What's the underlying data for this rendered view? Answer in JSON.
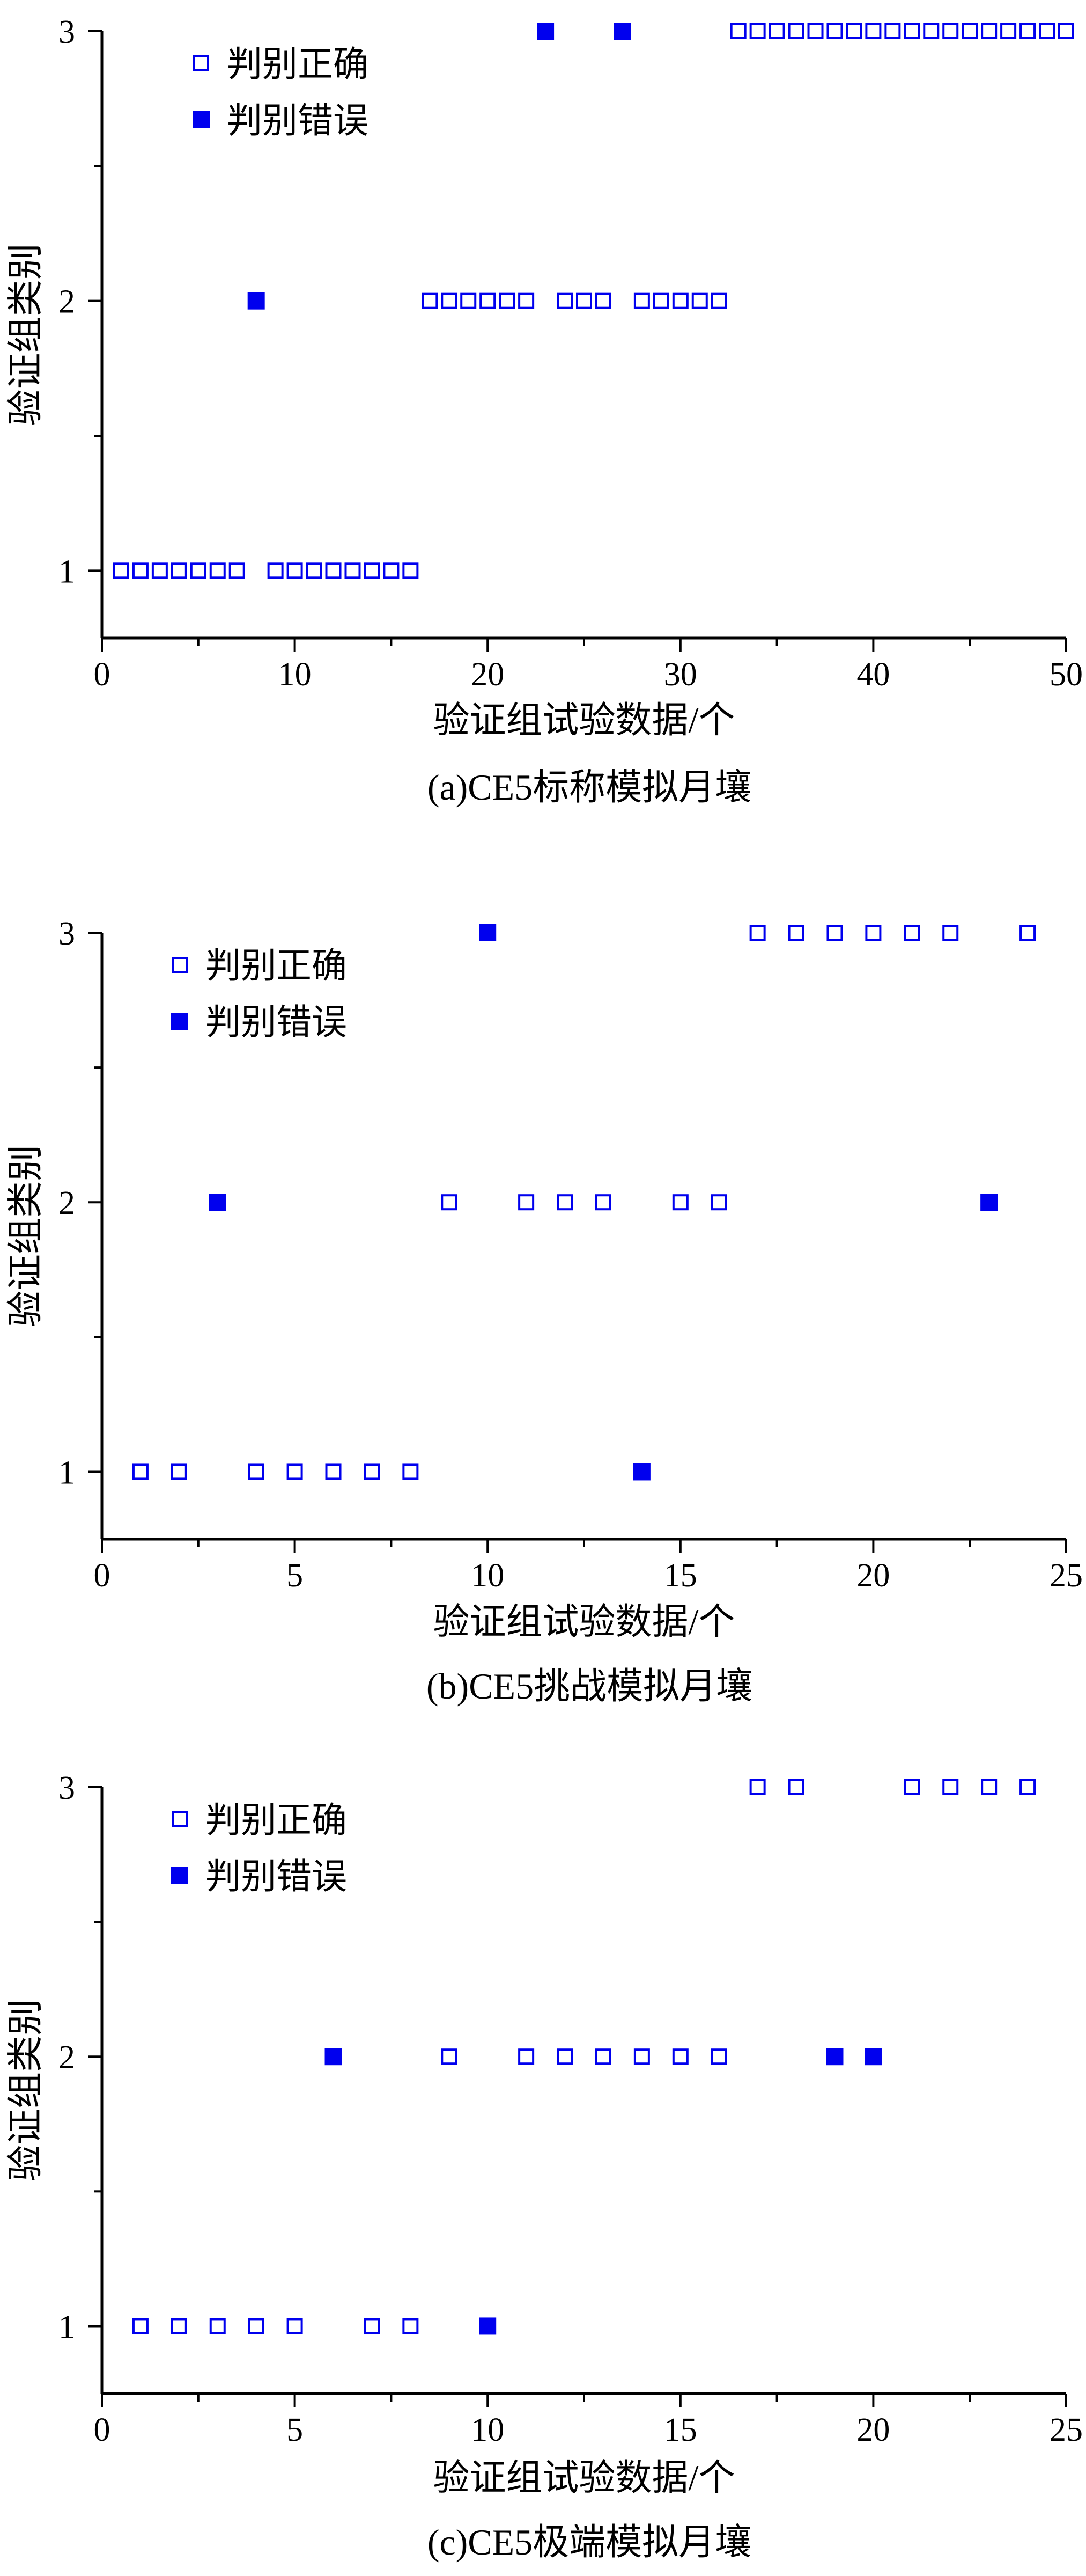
{
  "colors": {
    "marker": "#0000ee",
    "axis": "#000000"
  },
  "chart_data": [
    {
      "type": "scatter",
      "caption": "(a)CE5标称模拟月壤",
      "xlabel": "验证组试验数据/个",
      "ylabel": "验证组类别",
      "xlim": [
        0,
        50
      ],
      "ylim": [
        0.75,
        3.0
      ],
      "xticks": [
        0,
        10,
        20,
        30,
        40,
        50
      ],
      "yticks": [
        1,
        2,
        3
      ],
      "legend_position": "top-left",
      "series": [
        {
          "name": "判别正确",
          "marker": "hollow-square",
          "x": [
            1,
            2,
            3,
            4,
            5,
            6,
            7,
            9,
            10,
            11,
            12,
            13,
            14,
            15,
            16,
            17,
            18,
            19,
            20,
            21,
            22,
            24,
            25,
            26,
            28,
            29,
            30,
            31,
            32,
            33,
            34,
            35,
            36,
            37,
            38,
            39,
            40,
            41,
            42,
            43,
            44,
            45,
            46,
            47,
            48,
            49,
            50
          ],
          "y": [
            1,
            1,
            1,
            1,
            1,
            1,
            1,
            1,
            1,
            1,
            1,
            1,
            1,
            1,
            1,
            2,
            2,
            2,
            2,
            2,
            2,
            2,
            2,
            2,
            2,
            2,
            2,
            2,
            2,
            3,
            3,
            3,
            3,
            3,
            3,
            3,
            3,
            3,
            3,
            3,
            3,
            3,
            3,
            3,
            3,
            3,
            3
          ]
        },
        {
          "name": "判别错误",
          "marker": "filled-square",
          "x": [
            8,
            23,
            27
          ],
          "y": [
            2,
            3,
            3
          ]
        }
      ]
    },
    {
      "type": "scatter",
      "caption": "(b)CE5挑战模拟月壤",
      "xlabel": "验证组试验数据/个",
      "ylabel": "验证组类别",
      "xlim": [
        0,
        25
      ],
      "ylim": [
        0.75,
        3.0
      ],
      "xticks": [
        0,
        5,
        10,
        15,
        20,
        25
      ],
      "yticks": [
        1,
        2,
        3
      ],
      "legend_position": "top-left",
      "series": [
        {
          "name": "判别正确",
          "marker": "hollow-square",
          "x": [
            1,
            2,
            4,
            5,
            6,
            7,
            8,
            9,
            11,
            12,
            13,
            15,
            16,
            17,
            18,
            19,
            20,
            21,
            22,
            24
          ],
          "y": [
            1,
            1,
            1,
            1,
            1,
            1,
            1,
            2,
            2,
            2,
            2,
            2,
            2,
            3,
            3,
            3,
            3,
            3,
            3,
            3
          ]
        },
        {
          "name": "判别错误",
          "marker": "filled-square",
          "x": [
            3,
            10,
            14,
            23
          ],
          "y": [
            2,
            3,
            1,
            2
          ]
        }
      ]
    },
    {
      "type": "scatter",
      "caption": "(c)CE5极端模拟月壤",
      "xlabel": "验证组试验数据/个",
      "ylabel": "验证组类别",
      "xlim": [
        0,
        25
      ],
      "ylim": [
        0.75,
        3.0
      ],
      "xticks": [
        0,
        5,
        10,
        15,
        20,
        25
      ],
      "yticks": [
        1,
        2,
        3
      ],
      "legend_position": "top-left",
      "series": [
        {
          "name": "判别正确",
          "marker": "hollow-square",
          "x": [
            1,
            2,
            3,
            4,
            5,
            7,
            8,
            9,
            11,
            12,
            13,
            14,
            15,
            16,
            17,
            18,
            21,
            22,
            23,
            24
          ],
          "y": [
            1,
            1,
            1,
            1,
            1,
            1,
            1,
            2,
            2,
            2,
            2,
            2,
            2,
            2,
            3,
            3,
            3,
            3,
            3,
            3
          ]
        },
        {
          "name": "判别错误",
          "marker": "filled-square",
          "x": [
            6,
            10,
            19,
            20
          ],
          "y": [
            2,
            1,
            2,
            2
          ]
        }
      ]
    }
  ]
}
